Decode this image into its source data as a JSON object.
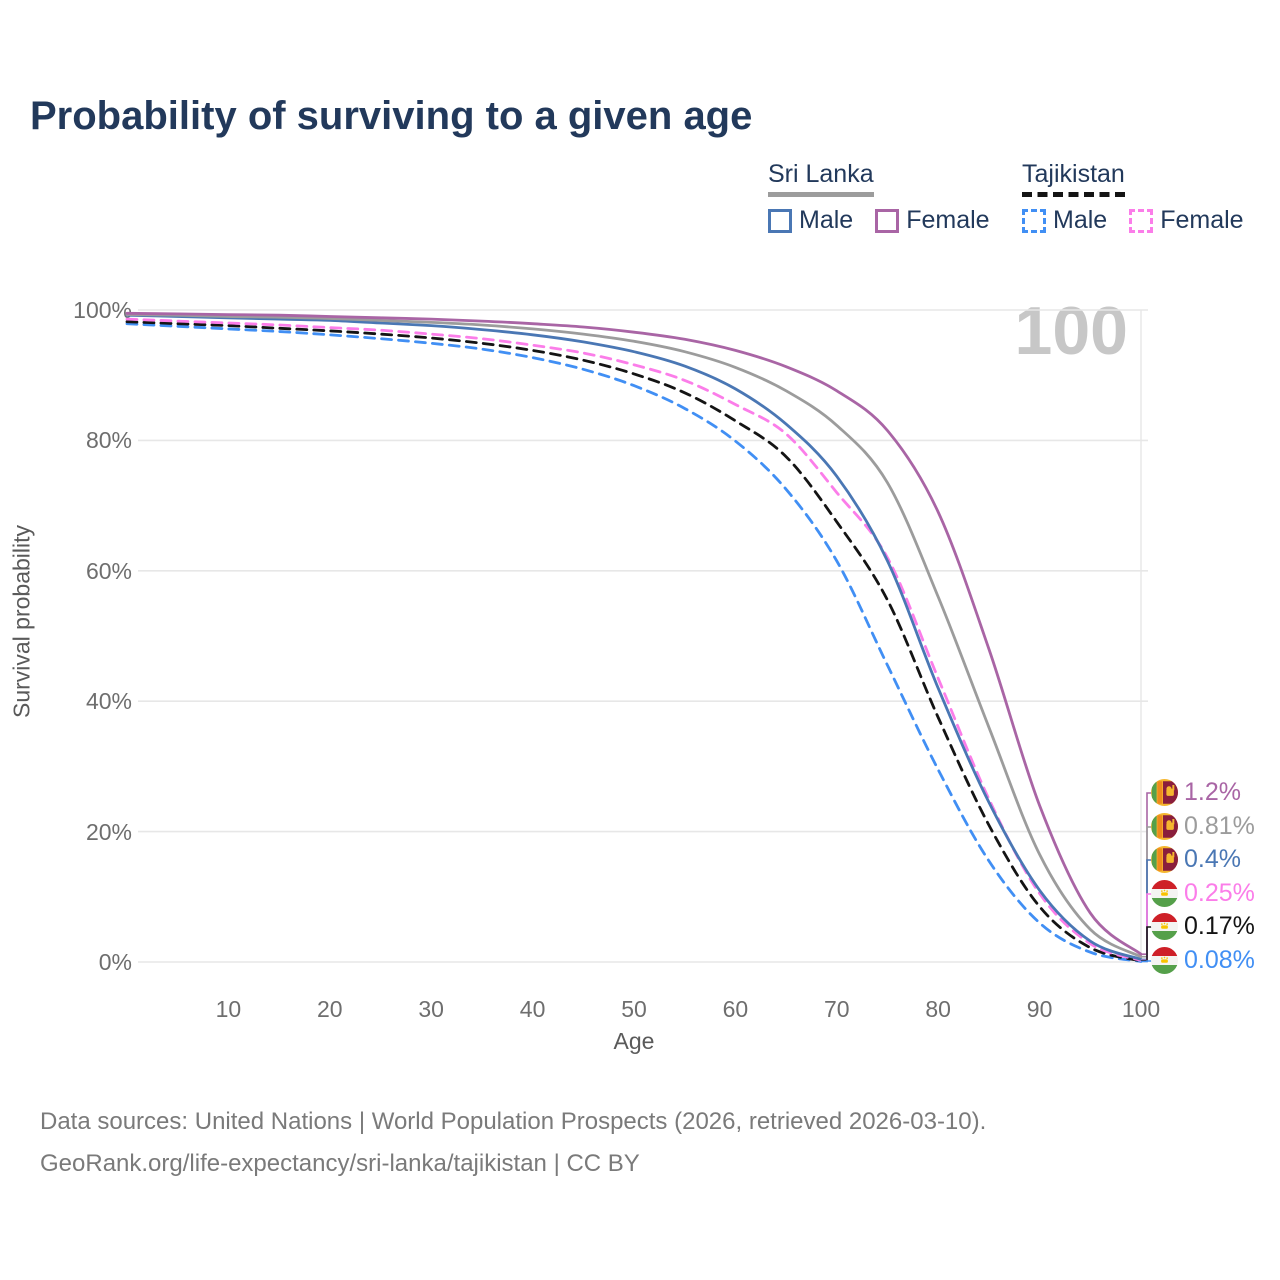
{
  "title": "Probability of surviving to a given age",
  "watermark": "100",
  "legend": {
    "groups": [
      {
        "label": "Sri Lanka",
        "underline": "solid",
        "underline_color": "#9c9c9c",
        "items": [
          {
            "label": "Male",
            "color": "#4a77b4",
            "dashed": false
          },
          {
            "label": "Female",
            "color": "#a965a5",
            "dashed": false
          }
        ]
      },
      {
        "label": "Tajikistan",
        "underline": "dashed",
        "underline_color": "#141414",
        "items": [
          {
            "label": "Male",
            "color": "#418ff4",
            "dashed": true
          },
          {
            "label": "Female",
            "color": "#fb7de9",
            "dashed": true
          }
        ]
      }
    ]
  },
  "chart_data": {
    "type": "line",
    "title": "Probability of surviving to a given age",
    "xlabel": "Age",
    "ylabel": "Survival probability",
    "xlim": [
      0,
      100
    ],
    "ylim": [
      0,
      100
    ],
    "grid": "horizontal",
    "x_ticks": [
      10,
      20,
      30,
      40,
      50,
      60,
      70,
      80,
      90,
      100
    ],
    "y_ticks": [
      {
        "value": 0,
        "label": "0%"
      },
      {
        "value": 20,
        "label": "20%"
      },
      {
        "value": 40,
        "label": "40%"
      },
      {
        "value": 60,
        "label": "60%"
      },
      {
        "value": 80,
        "label": "80%"
      },
      {
        "value": 100,
        "label": "100%"
      }
    ],
    "x": [
      0,
      5,
      10,
      15,
      20,
      25,
      30,
      35,
      40,
      45,
      50,
      55,
      60,
      65,
      70,
      75,
      80,
      85,
      90,
      95,
      100
    ],
    "series": [
      {
        "name": "Sri Lanka Female",
        "color": "#a965a5",
        "dashed": false,
        "flag": "sri-lanka",
        "end_label": "1.2%",
        "values": [
          99.5,
          99.4,
          99.3,
          99.2,
          99.0,
          98.8,
          98.6,
          98.3,
          97.9,
          97.4,
          96.6,
          95.5,
          93.8,
          91.3,
          87.6,
          81.5,
          69,
          48,
          24,
          7.5,
          1.2
        ]
      },
      {
        "name": "Sri Lanka (both sexes)",
        "color": "#9c9c9c",
        "dashed": false,
        "flag": "sri-lanka",
        "end_label": "0.81%",
        "values": [
          99.3,
          99.2,
          99.0,
          98.9,
          98.7,
          98.4,
          98.1,
          97.7,
          97.1,
          96.3,
          95.2,
          93.6,
          91.2,
          87.6,
          82.3,
          73.5,
          56,
          36,
          16.5,
          5,
          0.81
        ]
      },
      {
        "name": "Sri Lanka Male",
        "color": "#4a77b4",
        "dashed": false,
        "flag": "sri-lanka",
        "end_label": "0.4%",
        "values": [
          99.2,
          99.0,
          98.8,
          98.6,
          98.4,
          98.0,
          97.6,
          97.0,
          96.2,
          95.1,
          93.6,
          91.4,
          87.9,
          82.5,
          74.5,
          61.5,
          42,
          24.5,
          11,
          3.2,
          0.4
        ]
      },
      {
        "name": "Tajikistan Female",
        "color": "#fb7de9",
        "dashed": true,
        "flag": "tajikistan",
        "end_label": "0.25%",
        "values": [
          98.6,
          98.3,
          98.0,
          97.7,
          97.3,
          96.9,
          96.3,
          95.6,
          94.6,
          93.4,
          91.6,
          89.2,
          85.5,
          81.0,
          72.0,
          62.0,
          43.5,
          25.0,
          10.5,
          2.8,
          0.25
        ]
      },
      {
        "name": "Tajikistan (both sexes)",
        "color": "#141414",
        "dashed": true,
        "flag": "tajikistan",
        "end_label": "0.17%",
        "values": [
          98.2,
          97.9,
          97.6,
          97.2,
          96.8,
          96.3,
          95.7,
          94.9,
          93.8,
          92.3,
          90.2,
          87.3,
          83.0,
          77.5,
          67.5,
          55.5,
          37.5,
          21.0,
          8.5,
          2.2,
          0.17
        ]
      },
      {
        "name": "Tajikistan Male",
        "color": "#418ff4",
        "dashed": true,
        "flag": "tajikistan",
        "end_label": "0.08%",
        "values": [
          97.9,
          97.5,
          97.1,
          96.7,
          96.2,
          95.6,
          94.9,
          94.0,
          92.7,
          90.9,
          88.4,
          84.9,
          79.9,
          72.5,
          61.5,
          45.5,
          29.5,
          15.5,
          6.0,
          1.5,
          0.08
        ]
      }
    ]
  },
  "footer": {
    "line1": "Data sources: United Nations | World Population Prospects (2026, retrieved 2026-03-10).",
    "line2": "GeoRank.org/life-expectancy/sri-lanka/tajikistan | CC BY"
  }
}
